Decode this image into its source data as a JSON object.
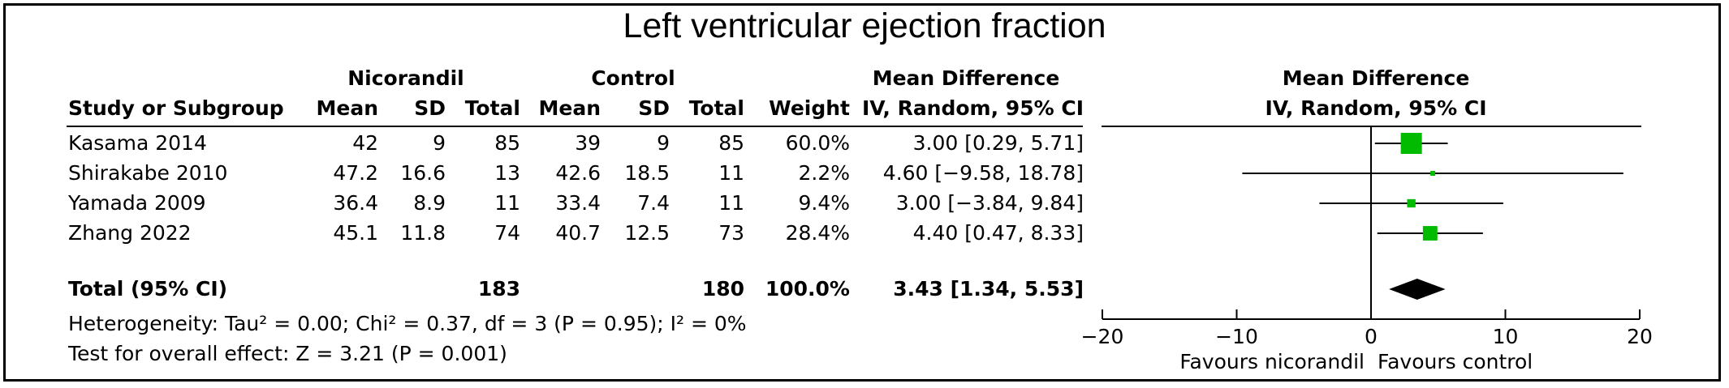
{
  "chart_data": {
    "type": "forest",
    "title": "Left ventricular ejection fraction",
    "headers": {
      "group1": "Nicorandil",
      "group2": "Control",
      "study": "Study or Subgroup",
      "mean": "Mean",
      "sd": "SD",
      "total": "Total",
      "weight": "Weight",
      "md": "Mean Difference",
      "md_method": "IV, Random, 95% CI"
    },
    "studies": [
      {
        "name": "Kasama 2014",
        "m1": "42",
        "sd1": "9",
        "n1": "85",
        "m2": "39",
        "sd2": "9",
        "n2": "85",
        "weight": "60.0%",
        "ci_text": "3.00 [0.29, 5.71]",
        "md": 3.0,
        "lower": 0.29,
        "upper": 5.71,
        "w": 60.0
      },
      {
        "name": "Shirakabe 2010",
        "m1": "47.2",
        "sd1": "16.6",
        "n1": "13",
        "m2": "42.6",
        "sd2": "18.5",
        "n2": "11",
        "weight": "2.2%",
        "ci_text": "4.60 [−9.58, 18.78]",
        "md": 4.6,
        "lower": -9.58,
        "upper": 18.78,
        "w": 2.2
      },
      {
        "name": "Yamada 2009",
        "m1": "36.4",
        "sd1": "8.9",
        "n1": "11",
        "m2": "33.4",
        "sd2": "7.4",
        "n2": "11",
        "weight": "9.4%",
        "ci_text": "3.00 [−3.84, 9.84]",
        "md": 3.0,
        "lower": -3.84,
        "upper": 9.84,
        "w": 9.4
      },
      {
        "name": "Zhang 2022",
        "m1": "45.1",
        "sd1": "11.8",
        "n1": "74",
        "m2": "40.7",
        "sd2": "12.5",
        "n2": "73",
        "weight": "28.4%",
        "ci_text": "4.40 [0.47, 8.33]",
        "md": 4.4,
        "lower": 0.47,
        "upper": 8.33,
        "w": 28.4
      }
    ],
    "total": {
      "label": "Total (95% CI)",
      "n1": "183",
      "n2": "180",
      "weight": "100.0%",
      "ci_text": "3.43 [1.34, 5.53]",
      "md": 3.43,
      "lower": 1.34,
      "upper": 5.53
    },
    "heterogeneity_text": "Heterogeneity: Tau² = 0.00; Chi² = 0.37, df = 3 (P = 0.95); I² = 0%",
    "overall_effect_text": "Test for overall effect: Z = 3.21 (P = 0.001)",
    "xlim": [
      -20,
      20
    ],
    "xticks": [
      -20,
      -10,
      0,
      10,
      20
    ],
    "xtick_labels": [
      "−20",
      "−10",
      "0",
      "10",
      "20"
    ],
    "favours_left": "Favours nicorandil",
    "favours_right": "Favours control",
    "colors": {
      "marker": "#00bb00",
      "diamond": "#000000",
      "lines": "#000000"
    }
  }
}
